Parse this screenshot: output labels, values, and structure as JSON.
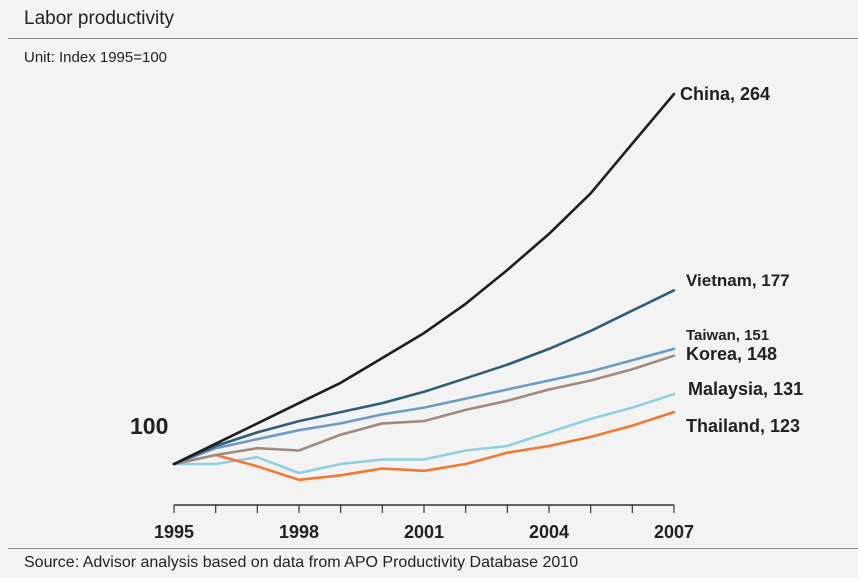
{
  "header": {
    "title": "Labor productivity",
    "unit": "Unit: Index 1995=100"
  },
  "footer": {
    "source": "Source: Advisor analysis based on data from APO Productivity Database 2010"
  },
  "chart_data": {
    "type": "line",
    "title": "Labor productivity",
    "subtitle": "Unit: Index 1995=100",
    "x": [
      1995,
      1996,
      1997,
      1998,
      1999,
      2000,
      2001,
      2002,
      2003,
      2004,
      2005,
      2006,
      2007
    ],
    "x_ticks": [
      1995,
      1998,
      2001,
      2004,
      2007
    ],
    "y_range": [
      80,
      270
    ],
    "baseline_label": "100",
    "grid": false,
    "series": [
      {
        "name": "China",
        "end_label": "China, 264",
        "color": "#1e1e1e",
        "values": [
          100,
          109,
          118,
          127,
          136,
          147,
          158,
          171,
          186,
          202,
          220,
          242,
          264
        ]
      },
      {
        "name": "Vietnam",
        "end_label": "Vietnam, 177",
        "color": "#2e5e7a",
        "values": [
          100,
          108,
          114,
          119,
          123,
          127,
          132,
          138,
          144,
          151,
          159,
          168,
          177
        ]
      },
      {
        "name": "Taiwan",
        "end_label": "Taiwan, 151",
        "color": "#6a9cc4",
        "values": [
          100,
          107,
          111,
          115,
          118,
          122,
          125,
          129,
          133,
          137,
          141,
          146,
          151
        ]
      },
      {
        "name": "Korea",
        "end_label": "Korea, 148",
        "color": "#a08a80",
        "values": [
          100,
          104,
          107,
          106,
          113,
          118,
          119,
          124,
          128,
          133,
          137,
          142,
          148
        ]
      },
      {
        "name": "Malaysia",
        "end_label": "Malaysia, 131",
        "color": "#8fd0e0",
        "values": [
          100,
          100,
          103,
          96,
          100,
          102,
          102,
          106,
          108,
          114,
          120,
          125,
          131
        ]
      },
      {
        "name": "Thailand",
        "end_label": "Thailand, 123",
        "color": "#f07830",
        "values": [
          100,
          104,
          99,
          93,
          95,
          98,
          97,
          100,
          105,
          108,
          112,
          117,
          123
        ]
      }
    ]
  }
}
